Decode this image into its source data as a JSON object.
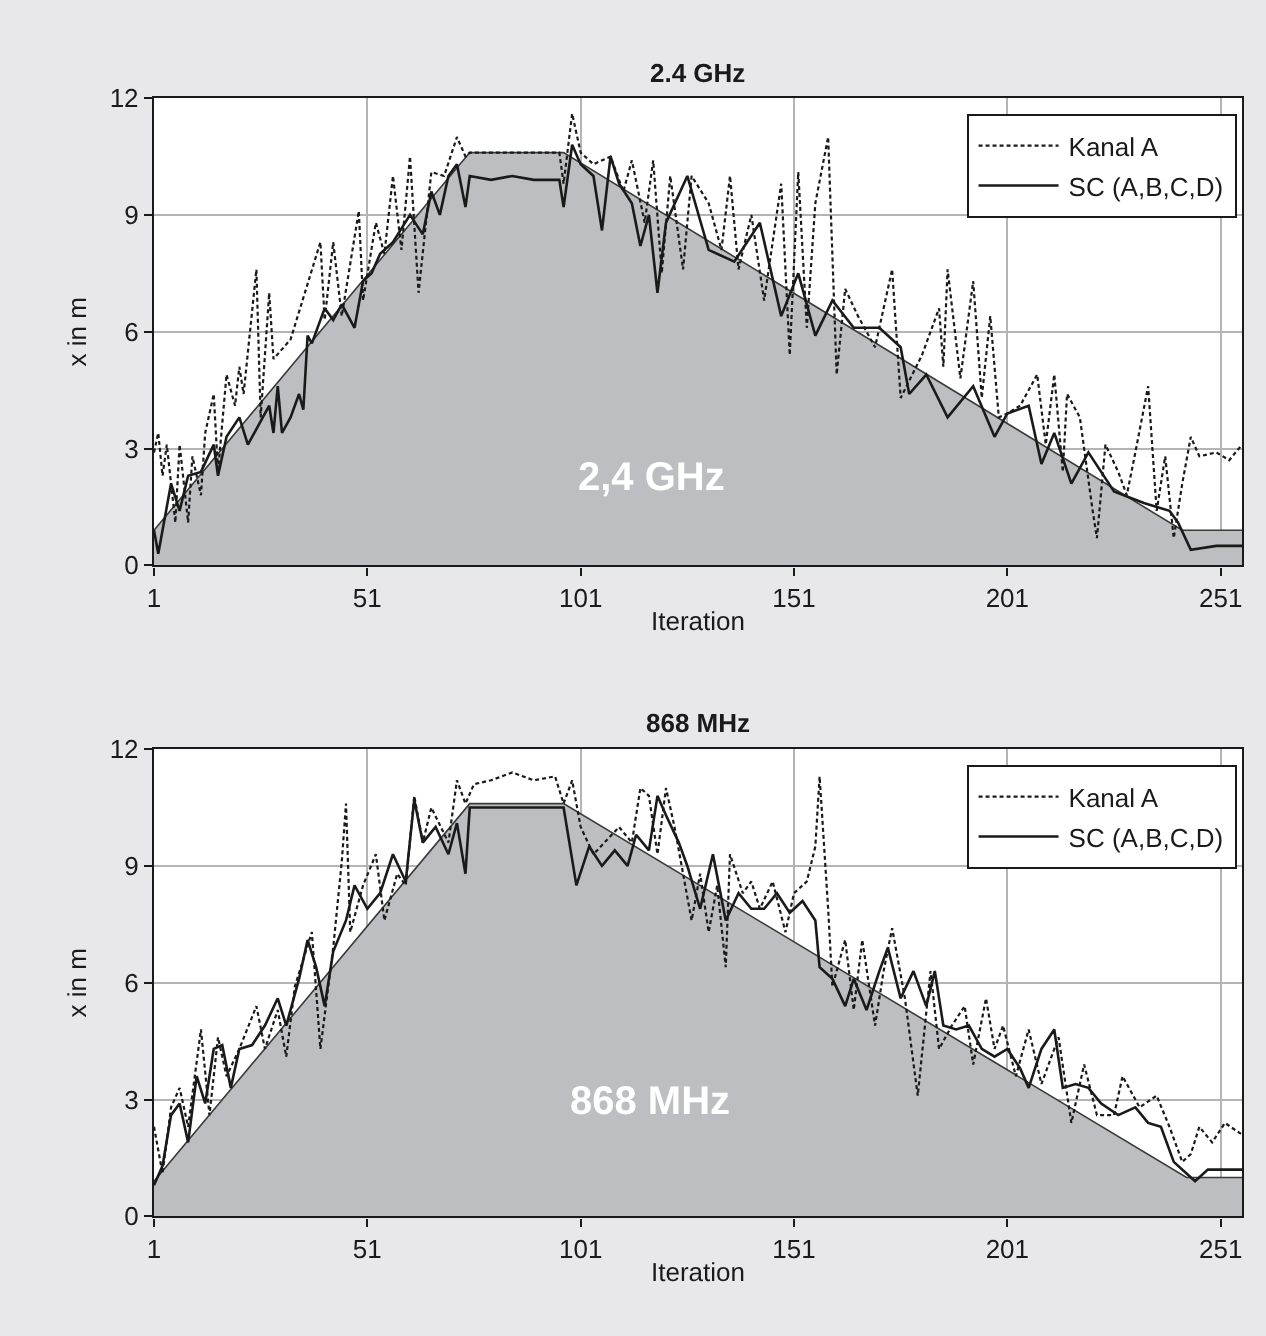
{
  "chart_data": [
    {
      "type": "line",
      "title": "2.4 GHz",
      "xlabel": "Iteration",
      "ylabel": "x in m",
      "xlim": [
        1,
        256
      ],
      "ylim": [
        0,
        12
      ],
      "xticks": [
        1,
        51,
        101,
        151,
        201,
        251
      ],
      "yticks": [
        0,
        3,
        6,
        9,
        12
      ],
      "grid": true,
      "legend": "top right",
      "annotations": [
        "2,4 GHz"
      ],
      "series": [
        {
          "type": "area",
          "color": "#bdbec2",
          "x": [
            1,
            75,
            97,
            242,
            256
          ],
          "values": [
            0.9,
            10.6,
            10.6,
            0.9,
            0.9
          ]
        },
        {
          "name": "Kanal A",
          "color": "#1a1a1a",
          "line_style": "dotted",
          "x": [
            1,
            2,
            3,
            4,
            6,
            7,
            9,
            10,
            12,
            13,
            15,
            16,
            18,
            20,
            21,
            22,
            25,
            26,
            28,
            29,
            33,
            40,
            41,
            43,
            45,
            49,
            50,
            53,
            55,
            57,
            59,
            61,
            63,
            66,
            69,
            72,
            74,
            75,
            85,
            96,
            97,
            99,
            101,
            104,
            108,
            111,
            113,
            116,
            118,
            120,
            122,
            125,
            127,
            131,
            134,
            136,
            138,
            141,
            144,
            148,
            150,
            152,
            154,
            156,
            159,
            161,
            163,
            166,
            170,
            174,
            176,
            181,
            185,
            186,
            187,
            190,
            193,
            195,
            197,
            199,
            201,
            204,
            208,
            210,
            212,
            214,
            215,
            218,
            221,
            222,
            224,
            227,
            229,
            231,
            234,
            236,
            238,
            240,
            242,
            244,
            246,
            250,
            253,
            256
          ],
          "values": [
            2.9,
            3.4,
            2.3,
            3.1,
            1.1,
            3.1,
            1.1,
            2.8,
            1.8,
            3.4,
            4.4,
            2.4,
            4.9,
            4.1,
            5.1,
            4.4,
            7.6,
            3.8,
            7.0,
            5.3,
            5.8,
            8.3,
            6.3,
            8.3,
            6.4,
            9.1,
            6.8,
            8.8,
            8.0,
            10.0,
            8.1,
            10.5,
            7.0,
            10.1,
            10.0,
            11.0,
            10.5,
            10.6,
            10.6,
            10.6,
            9.8,
            11.6,
            10.6,
            10.3,
            10.5,
            9.6,
            10.4,
            8.8,
            10.4,
            7.5,
            10.0,
            7.6,
            10.0,
            9.3,
            8.1,
            10.0,
            7.6,
            9.0,
            6.8,
            9.8,
            5.4,
            10.1,
            6.1,
            9.3,
            11.0,
            4.9,
            7.1,
            6.4,
            5.6,
            7.6,
            4.3,
            5.4,
            6.6,
            5.1,
            7.6,
            4.8,
            7.3,
            4.3,
            6.4,
            3.8,
            3.9,
            4.1,
            4.9,
            3.1,
            4.9,
            2.4,
            4.4,
            3.8,
            1.4,
            0.7,
            3.1,
            2.4,
            1.8,
            2.9,
            4.6,
            1.4,
            2.8,
            0.7,
            2.1,
            3.3,
            2.8,
            2.9,
            2.7,
            3.1
          ]
        },
        {
          "name": "SC (A,B,C,D)",
          "color": "#1a1a1a",
          "line_style": "solid",
          "x": [
            1,
            2,
            5,
            7,
            9,
            12,
            15,
            16,
            18,
            21,
            23,
            25,
            28,
            29,
            30,
            31,
            33,
            35,
            36,
            37,
            38,
            41,
            43,
            45,
            48,
            50,
            52,
            54,
            57,
            61,
            64,
            66,
            68,
            70,
            72,
            74,
            75,
            80,
            85,
            90,
            96,
            97,
            99,
            101,
            104,
            106,
            108,
            110,
            113,
            115,
            117,
            119,
            121,
            126,
            131,
            137,
            143,
            148,
            152,
            156,
            160,
            165,
            171,
            176,
            178,
            182,
            187,
            193,
            198,
            201,
            206,
            209,
            212,
            216,
            220,
            226,
            233,
            239,
            241,
            244,
            250,
            256
          ],
          "values": [
            0.9,
            0.3,
            2.1,
            1.4,
            2.3,
            2.4,
            3.1,
            2.3,
            3.3,
            3.8,
            3.1,
            3.5,
            4.1,
            3.4,
            4.6,
            3.4,
            3.8,
            4.4,
            4.0,
            5.9,
            5.7,
            6.6,
            6.3,
            6.7,
            6.1,
            7.3,
            7.5,
            8.0,
            8.3,
            9.0,
            8.5,
            9.6,
            9.0,
            10.0,
            10.3,
            9.2,
            10.0,
            9.9,
            10.0,
            9.9,
            9.9,
            9.2,
            10.8,
            10.3,
            10.0,
            8.6,
            10.5,
            9.8,
            9.3,
            8.2,
            9.0,
            7.0,
            8.8,
            10.0,
            8.1,
            7.8,
            8.8,
            6.4,
            7.5,
            5.9,
            6.8,
            6.1,
            6.1,
            5.6,
            4.4,
            4.9,
            3.8,
            4.6,
            3.3,
            3.9,
            4.1,
            2.6,
            3.4,
            2.1,
            2.9,
            1.9,
            1.6,
            1.4,
            1.1,
            0.4,
            0.5,
            0.5
          ]
        }
      ]
    },
    {
      "type": "line",
      "title": "868 MHz",
      "xlabel": "Iteration",
      "ylabel": "x in m",
      "xlim": [
        1,
        256
      ],
      "ylim": [
        0,
        12
      ],
      "xticks": [
        1,
        51,
        101,
        151,
        201,
        251
      ],
      "yticks": [
        0,
        3,
        6,
        9,
        12
      ],
      "grid": true,
      "legend": "top right",
      "annotations": [
        "868 MHz"
      ],
      "series": [
        {
          "type": "area",
          "color": "#bdbec2",
          "x": [
            1,
            75,
            97,
            243,
            256
          ],
          "values": [
            0.9,
            10.6,
            10.6,
            1.0,
            1.0
          ]
        },
        {
          "name": "Kanal A",
          "color": "#1a1a1a",
          "line_style": "dotted",
          "x": [
            1,
            3,
            5,
            7,
            9,
            12,
            14,
            16,
            18,
            21,
            25,
            27,
            30,
            32,
            34,
            38,
            40,
            43,
            45,
            46,
            47,
            50,
            53,
            55,
            58,
            60,
            62,
            64,
            66,
            70,
            72,
            74,
            76,
            80,
            85,
            90,
            95,
            97,
            99,
            101,
            104,
            110,
            113,
            115,
            117,
            119,
            121,
            123,
            125,
            127,
            129,
            131,
            133,
            135,
            136,
            139,
            141,
            143,
            146,
            149,
            151,
            154,
            156,
            157,
            159,
            160,
            163,
            165,
            167,
            170,
            172,
            174,
            177,
            180,
            183,
            185,
            188,
            191,
            193,
            196,
            198,
            200,
            203,
            206,
            209,
            213,
            216,
            219,
            222,
            226,
            228,
            232,
            236,
            239,
            242,
            244,
            246,
            249,
            252,
            256
          ],
          "values": [
            2.3,
            1.1,
            2.8,
            3.3,
            2.3,
            4.8,
            2.6,
            4.6,
            3.6,
            4.3,
            5.4,
            4.3,
            5.3,
            4.1,
            5.9,
            7.3,
            4.3,
            6.9,
            9.1,
            10.6,
            7.3,
            8.5,
            9.3,
            7.6,
            8.8,
            8.5,
            10.8,
            9.6,
            10.5,
            9.6,
            11.2,
            10.6,
            11.1,
            11.2,
            11.4,
            11.2,
            11.3,
            10.6,
            11.2,
            10.0,
            9.3,
            10.0,
            9.6,
            11.0,
            10.8,
            9.3,
            11.0,
            10.0,
            8.8,
            7.6,
            8.8,
            7.3,
            8.5,
            6.4,
            9.3,
            8.3,
            8.6,
            7.9,
            8.6,
            7.3,
            8.3,
            8.6,
            9.5,
            11.3,
            7.9,
            5.9,
            7.1,
            5.3,
            7.1,
            4.9,
            6.3,
            7.4,
            5.6,
            3.1,
            6.3,
            4.3,
            4.9,
            5.4,
            3.9,
            5.6,
            4.3,
            4.9,
            3.6,
            4.8,
            3.4,
            4.6,
            2.4,
            3.9,
            2.6,
            2.6,
            3.6,
            2.8,
            3.1,
            2.3,
            1.4,
            1.6,
            2.3,
            1.9,
            2.4,
            2.1
          ]
        },
        {
          "name": "SC (A,B,C,D)",
          "color": "#1a1a1a",
          "line_style": "solid",
          "x": [
            1,
            3,
            5,
            7,
            9,
            11,
            13,
            15,
            17,
            19,
            21,
            24,
            27,
            30,
            32,
            35,
            37,
            39,
            41,
            43,
            46,
            48,
            51,
            54,
            57,
            60,
            62,
            64,
            67,
            70,
            72,
            74,
            75,
            85,
            97,
            100,
            103,
            106,
            109,
            112,
            114,
            117,
            119,
            121,
            124,
            126,
            129,
            132,
            135,
            138,
            141,
            144,
            147,
            150,
            153,
            156,
            157,
            160,
            163,
            165,
            168,
            171,
            173,
            176,
            179,
            182,
            184,
            186,
            189,
            192,
            195,
            198,
            201,
            204,
            206,
            209,
            212,
            214,
            217,
            220,
            223,
            227,
            231,
            234,
            237,
            240,
            243,
            245,
            248,
            256
          ],
          "values": [
            0.8,
            1.3,
            2.6,
            2.9,
            1.9,
            3.6,
            2.9,
            4.3,
            4.4,
            3.3,
            4.3,
            4.4,
            4.9,
            5.6,
            4.9,
            6.1,
            7.1,
            6.4,
            5.4,
            6.8,
            7.6,
            8.5,
            7.9,
            8.3,
            9.3,
            8.6,
            10.7,
            9.6,
            10.0,
            9.3,
            10.1,
            8.8,
            10.5,
            10.5,
            10.5,
            8.5,
            9.5,
            9.0,
            9.4,
            9.0,
            9.8,
            9.4,
            10.8,
            10.3,
            9.6,
            9.0,
            7.9,
            9.3,
            7.6,
            8.3,
            7.9,
            7.9,
            8.3,
            7.8,
            8.1,
            7.6,
            6.4,
            6.1,
            5.4,
            6.1,
            5.3,
            6.3,
            6.9,
            5.6,
            6.3,
            5.4,
            6.3,
            4.9,
            4.8,
            4.9,
            4.3,
            4.1,
            4.3,
            3.8,
            3.3,
            4.3,
            4.8,
            3.3,
            3.4,
            3.3,
            2.9,
            2.6,
            2.8,
            2.4,
            2.3,
            1.4,
            1.1,
            0.9,
            1.2,
            1.2
          ]
        }
      ]
    }
  ]
}
